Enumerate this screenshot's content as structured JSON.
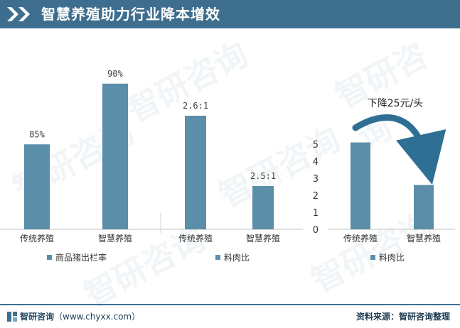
{
  "header": {
    "title": "智慧养殖助力行业降本增效"
  },
  "chart_data": [
    {
      "type": "bar",
      "categories": [
        "传统养殖",
        "智慧养殖"
      ],
      "series": [
        {
          "name": "商品猪出栏率",
          "values": [
            85,
            90
          ]
        }
      ],
      "data_labels": [
        "85%",
        "90%"
      ],
      "legend": "bottom"
    },
    {
      "type": "bar",
      "categories": [
        "传统养殖",
        "智慧养殖"
      ],
      "series": [
        {
          "name": "料肉比",
          "values": [
            2.6,
            2.5
          ]
        }
      ],
      "data_labels": [
        "2.6:1",
        "2.5:1"
      ],
      "legend": "bottom"
    },
    {
      "type": "bar",
      "categories": [
        "传统养殖",
        "智慧养殖"
      ],
      "series": [
        {
          "name": "料肉比",
          "values": [
            5.1,
            2.6
          ]
        }
      ],
      "ylim": [
        0,
        5
      ],
      "yticks": [
        0,
        1,
        2,
        3,
        4,
        5
      ],
      "annotation": "下降25元/头",
      "legend": "bottom"
    }
  ],
  "colors": {
    "bar": "#5b8ea8",
    "header": "#3d6e8e",
    "arrow": "#2e6f93"
  },
  "watermark": {
    "text": "智研咨询"
  },
  "footer": {
    "left_brand": "智研咨询",
    "left_url": "（www.chyxx.com）",
    "right": "资料来源：智研咨询整理"
  }
}
